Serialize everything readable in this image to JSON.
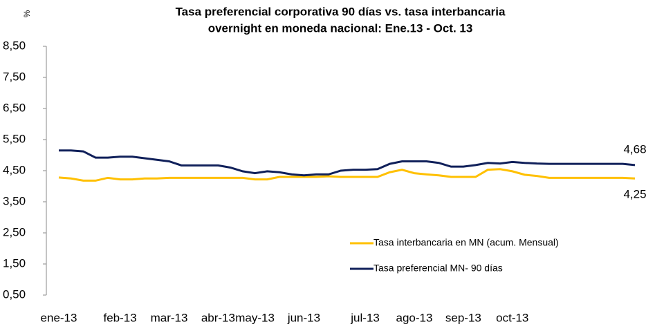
{
  "chart_data": {
    "type": "line",
    "title": [
      "Tasa preferencial corporativa 90 días vs. tasa interbancaria",
      "overnight en moneda nacional: Ene.13 - Oct. 13"
    ],
    "y_label": "%",
    "categories": [
      "ene-13",
      null,
      null,
      null,
      null,
      "feb-13",
      null,
      null,
      null,
      "mar-13",
      null,
      null,
      null,
      "abr-13",
      null,
      null,
      "may-13",
      null,
      null,
      null,
      "jun-13",
      null,
      null,
      null,
      null,
      "jul-13",
      null,
      null,
      null,
      "ago-13",
      null,
      null,
      null,
      "sep-13",
      null,
      null,
      null,
      "oct-13",
      null,
      null,
      null,
      null,
      null,
      null,
      null,
      null,
      null,
      null
    ],
    "ylim": [
      0.5,
      8.5
    ],
    "yticks": [
      {
        "value": 0.5,
        "label": "0,50"
      },
      {
        "value": 1.5,
        "label": "1,50"
      },
      {
        "value": 2.5,
        "label": "2,50"
      },
      {
        "value": 3.5,
        "label": "3,50"
      },
      {
        "value": 4.5,
        "label": "4,50"
      },
      {
        "value": 5.5,
        "label": "5,50"
      },
      {
        "value": 6.5,
        "label": "6,50"
      },
      {
        "value": 7.5,
        "label": "7,50"
      },
      {
        "value": 8.5,
        "label": "8,50"
      }
    ],
    "grid": false,
    "legend": "lower right",
    "series": [
      {
        "name": "Tasa interbancaria en MN (acum. Mensual)",
        "color": "#ffc000",
        "values": [
          4.28,
          4.25,
          4.18,
          4.18,
          4.27,
          4.22,
          4.22,
          4.25,
          4.25,
          4.27,
          4.27,
          4.27,
          4.27,
          4.27,
          4.27,
          4.27,
          4.22,
          4.22,
          4.3,
          4.3,
          4.3,
          4.3,
          4.32,
          4.3,
          4.3,
          4.3,
          4.3,
          4.45,
          4.53,
          4.42,
          4.38,
          4.35,
          4.3,
          4.3,
          4.3,
          4.53,
          4.55,
          4.48,
          4.37,
          4.33,
          4.27,
          4.27,
          4.27,
          4.27,
          4.27,
          4.27,
          4.27,
          4.25
        ],
        "end_label": "4,25"
      },
      {
        "name": "Tasa preferencial MN- 90 días",
        "color": "#10205a",
        "values": [
          5.15,
          5.15,
          5.12,
          4.92,
          4.92,
          4.95,
          4.95,
          4.9,
          4.85,
          4.8,
          4.67,
          4.67,
          4.67,
          4.67,
          4.6,
          4.48,
          4.42,
          4.48,
          4.45,
          4.38,
          4.35,
          4.38,
          4.38,
          4.5,
          4.53,
          4.53,
          4.55,
          4.72,
          4.8,
          4.8,
          4.8,
          4.75,
          4.63,
          4.63,
          4.68,
          4.75,
          4.73,
          4.78,
          4.75,
          4.73,
          4.72,
          4.72,
          4.72,
          4.72,
          4.72,
          4.72,
          4.72,
          4.68
        ],
        "end_label": "4,68"
      }
    ]
  }
}
